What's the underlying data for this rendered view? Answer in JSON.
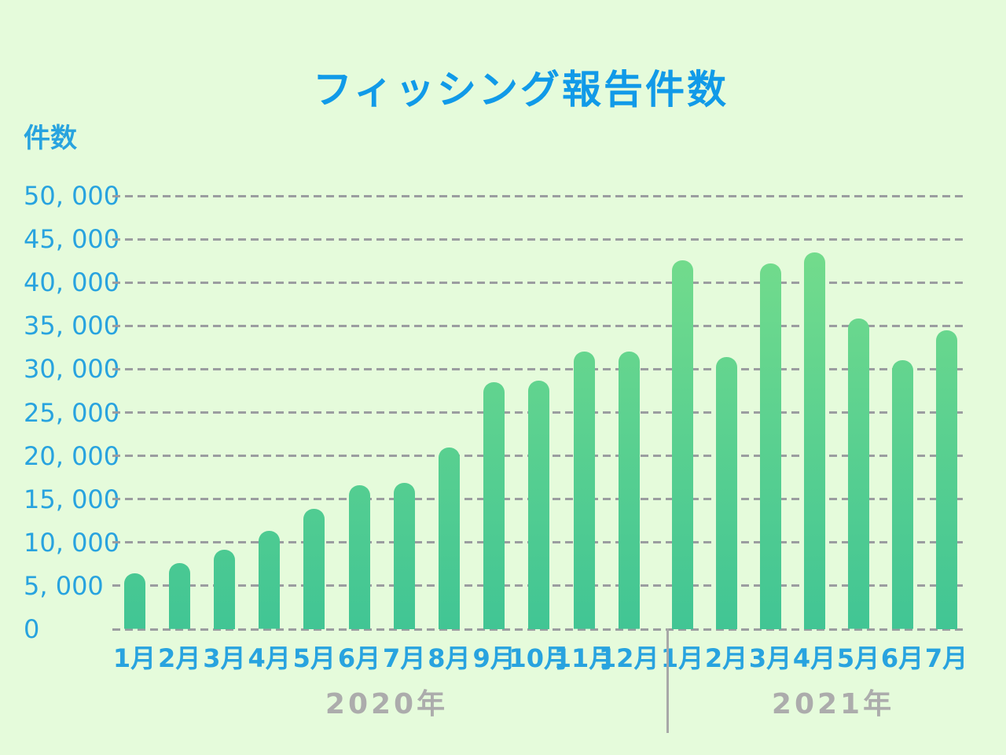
{
  "page": {
    "background_color": "#E5FBDB"
  },
  "chart_data": {
    "type": "bar",
    "title": "フィッシング報告件数",
    "ylabel": "件数",
    "xlabel": "",
    "ylim": [
      0,
      50000
    ],
    "ytick_step": 5000,
    "ytick_labels": [
      "50, 000",
      "45, 000",
      "40, 000",
      "35, 000",
      "30, 000",
      "25, 000",
      "20, 000",
      "15, 000",
      "10, 000",
      "5, 000",
      "0"
    ],
    "grid": "horizontal dashed",
    "legend": "none",
    "groups": [
      {
        "year_label": "2020年",
        "months": [
          "1月",
          "2月",
          "3月",
          "4月",
          "5月",
          "6月",
          "7月",
          "8月",
          "9月",
          "10月",
          "11月",
          "12月"
        ],
        "values": [
          6400,
          7600,
          9200,
          11300,
          13900,
          16600,
          16900,
          21000,
          28500,
          28700,
          32000,
          32000
        ]
      },
      {
        "year_label": "2021年",
        "months": [
          "1月",
          "2月",
          "3月",
          "4月",
          "5月",
          "6月",
          "7月"
        ],
        "values": [
          42600,
          31400,
          42200,
          43500,
          35800,
          31000,
          34500
        ]
      }
    ],
    "colors": {
      "background": "#E5FBDB",
      "title": "#119AE8",
      "axis_text": "#28A3DF",
      "gridline": "#9B9DA0",
      "year_text": "#ACACAC",
      "separator_line": "#A8A8A8",
      "bar_gradient_top": "#7ADF8B",
      "bar_gradient_bottom": "#41C594"
    }
  }
}
